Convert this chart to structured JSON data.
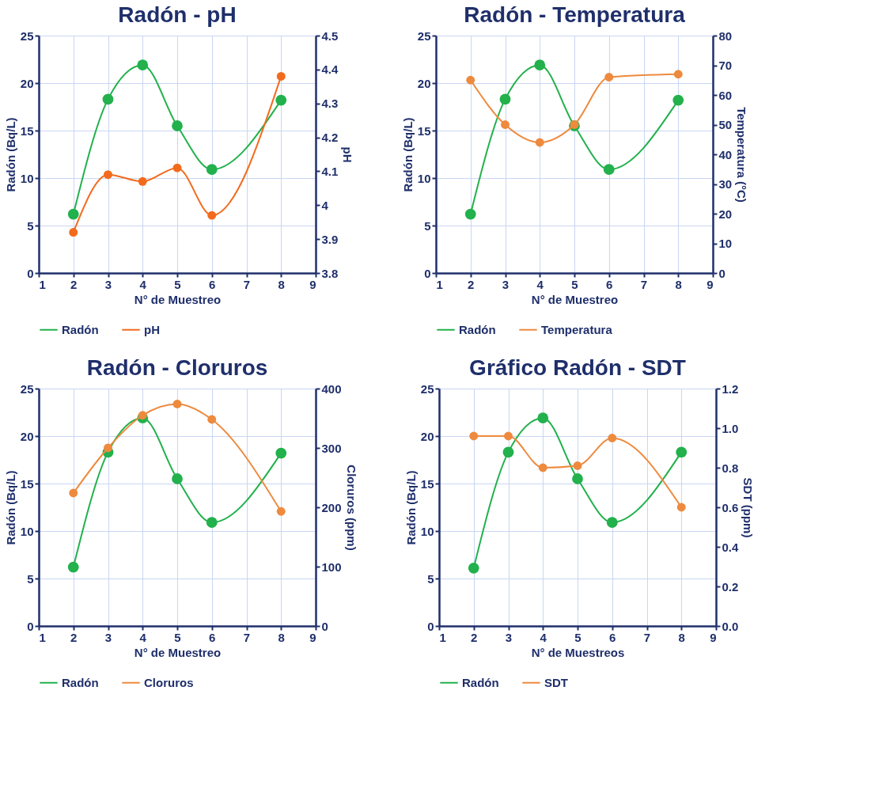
{
  "chart_data": [
    {
      "type": "line",
      "title": "Radón - pH",
      "xlabel": "N° de Muestreo",
      "ylabel": "Radón (Bq/L)",
      "y2label": "pH",
      "x": [
        2,
        3,
        4,
        5,
        6,
        8
      ],
      "xlim": [
        1,
        9
      ],
      "xticks": [
        1,
        2,
        3,
        4,
        5,
        6,
        7,
        8,
        9
      ],
      "ylim": [
        0,
        25
      ],
      "yticks": [
        0,
        5,
        10,
        15,
        20,
        25
      ],
      "y2lim": [
        3.8,
        4.5
      ],
      "y2ticks": [
        3.8,
        3.9,
        {
          "value": 4,
          "label": "4"
        },
        4.1,
        4.2,
        4.3,
        4.4,
        4.5
      ],
      "grid": true,
      "legend": "bottom",
      "marker": "circle",
      "series": [
        {
          "name": "Radón",
          "color": "#22b14c",
          "values": [
            6.2,
            18.3,
            21.9,
            15.5,
            10.9,
            18.2
          ]
        },
        {
          "name": "pH",
          "color": "#f26b1d",
          "axis": "y2",
          "values": [
            3.92,
            4.09,
            4.07,
            4.11,
            3.97,
            4.38
          ]
        }
      ]
    },
    {
      "type": "line",
      "title": "Radón - Temperatura",
      "xlabel": "N° de Muestreo",
      "ylabel": "Radón (Bq/L)",
      "y2label": "Temperatura (°C)",
      "x": [
        2,
        3,
        4,
        5,
        6,
        8
      ],
      "xlim": [
        1,
        9
      ],
      "xticks": [
        1,
        2,
        3,
        4,
        5,
        6,
        7,
        8,
        9
      ],
      "ylim": [
        0,
        25
      ],
      "yticks": [
        0,
        5,
        10,
        15,
        20,
        25
      ],
      "y2lim": [
        0,
        80
      ],
      "y2ticks": [
        0,
        10,
        20,
        30,
        40,
        50,
        60,
        70,
        80
      ],
      "grid": true,
      "legend": "bottom",
      "marker": "circle",
      "series": [
        {
          "name": "Radón",
          "color": "#22b14c",
          "values": [
            6.2,
            18.3,
            21.9,
            15.5,
            10.9,
            18.2
          ]
        },
        {
          "name": "Temperatura",
          "color": "#ee8a3e",
          "axis": "y2",
          "values": [
            65,
            50,
            44,
            50,
            66,
            67
          ]
        }
      ]
    },
    {
      "type": "line",
      "title": "Radón - Cloruros",
      "xlabel": "N° de Muestreo",
      "ylabel": "Radón (Bq/L)",
      "y2label": "Cloruros (ppm)",
      "x": [
        2,
        3,
        4,
        5,
        6,
        8
      ],
      "xlim": [
        1,
        9
      ],
      "xticks": [
        1,
        2,
        3,
        4,
        5,
        6,
        7,
        8,
        9
      ],
      "ylim": [
        0,
        25
      ],
      "yticks": [
        0,
        5,
        10,
        15,
        20,
        25
      ],
      "y2lim": [
        0,
        400
      ],
      "y2ticks": [
        0,
        100,
        200,
        300,
        400
      ],
      "grid": true,
      "legend": "bottom",
      "marker": "circle",
      "series": [
        {
          "name": "Radón",
          "color": "#22b14c",
          "values": [
            6.2,
            18.3,
            21.9,
            15.5,
            10.9,
            18.2
          ]
        },
        {
          "name": "Cloruros",
          "color": "#ee8a3e",
          "axis": "y2",
          "values": [
            224,
            300,
            355,
            374,
            348,
            193
          ]
        }
      ]
    },
    {
      "type": "line",
      "title": "Gráfico Radón - SDT",
      "xlabel": "N° de Muestreos",
      "ylabel": "Radón (Bq/L)",
      "y2label": "SDT (ppm)",
      "x": [
        2,
        3,
        4,
        5,
        6,
        8
      ],
      "xlim": [
        1,
        9
      ],
      "xticks": [
        1,
        2,
        3,
        4,
        5,
        6,
        7,
        8,
        9
      ],
      "ylim": [
        0,
        25
      ],
      "yticks": [
        0,
        5,
        10,
        15,
        20,
        25
      ],
      "y2lim": [
        0,
        1.2
      ],
      "y2ticks": [
        {
          "value": 0,
          "label": "0.0"
        },
        0.2,
        0.4,
        0.6,
        0.8,
        {
          "value": 1,
          "label": "1.0"
        },
        1.2
      ],
      "grid": true,
      "legend": "bottom",
      "marker": "circle",
      "series": [
        {
          "name": "Radón",
          "color": "#22b14c",
          "values": [
            6.1,
            18.3,
            21.9,
            15.5,
            10.9,
            18.3
          ]
        },
        {
          "name": "SDT",
          "color": "#ee8a3e",
          "axis": "y2",
          "values": [
            0.96,
            0.96,
            0.8,
            0.81,
            0.95,
            0.6
          ]
        }
      ]
    }
  ]
}
